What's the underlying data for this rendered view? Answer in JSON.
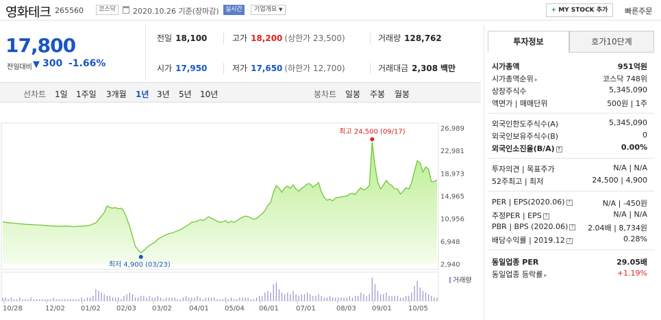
{
  "header": {
    "name": "영화테크",
    "code": "265560",
    "market": "코스닥",
    "date": "2020.10.26 기준(장마감)",
    "realtime": "실시간",
    "company_info": "기업개요",
    "mystock_label": "MY STOCK 추가",
    "quick_order": "빠른주문"
  },
  "price": {
    "current": "17,800",
    "change_label": "전일대비",
    "change_arrow": "▼",
    "change": "300",
    "change_pct": "-1.66%"
  },
  "stats": {
    "prev_label": "전일",
    "prev": "18,100",
    "high_label": "고가",
    "high": "18,200",
    "upper_limit": "(상한가 23,500)",
    "volume_label": "거래량",
    "volume": "128,762",
    "open_label": "시가",
    "open": "17,950",
    "low_label": "저가",
    "low": "17,650",
    "lower_limit": "(하한가 12,700)",
    "amount_label": "거래대금",
    "amount": "2,308",
    "amount_unit": "백만"
  },
  "period_bar": {
    "line_chart_label": "선차트",
    "line_options": [
      "1일",
      "1주일",
      "3개월",
      "1년",
      "3년",
      "5년",
      "10년"
    ],
    "selected": "1년",
    "candle_chart_label": "봉차트",
    "candle_options": [
      "일봉",
      "주봉",
      "월봉"
    ]
  },
  "chart_data": {
    "type": "area",
    "series": [
      {
        "values": [
          10400,
          10300,
          10200,
          10200,
          10150,
          10100,
          10050,
          10000,
          9950,
          9900,
          9900,
          9850,
          9850,
          9800,
          9800,
          9750,
          9700,
          9650,
          9650,
          9600,
          9600,
          9600,
          9650,
          9600,
          9600,
          9550,
          9550,
          9600,
          9600,
          9650,
          9700,
          9800,
          10000,
          10200,
          10800,
          11400,
          12000,
          13200,
          12900,
          12800,
          12900,
          12700,
          12800,
          12200,
          11000,
          9600,
          7800,
          6100,
          5400,
          4900,
          5300,
          5800,
          6200,
          6500,
          6800,
          7300,
          7600,
          7900,
          8100,
          8300,
          8400,
          8600,
          8800,
          9000,
          9300,
          9600,
          9900,
          10300,
          10400,
          10500,
          10800,
          10600,
          10900,
          11300,
          11000,
          10800,
          10500,
          10300,
          10400,
          10600,
          10200,
          10500,
          10300,
          10600,
          10900,
          11200,
          11400,
          11300,
          11100,
          10800,
          11000,
          11400,
          11800,
          12400,
          13300,
          13800,
          15600,
          16800,
          16300,
          15600,
          16400,
          16700,
          16300,
          16900,
          16200,
          15800,
          16300,
          16600,
          17100,
          17100,
          16500,
          16900,
          17300,
          15700,
          14700,
          14200,
          14400,
          14100,
          14600,
          14700,
          14800,
          14900,
          14900,
          15300,
          15400,
          15200,
          15900,
          16400,
          16000,
          16300,
          16800,
          24500,
          20300,
          17400,
          16200,
          16900,
          17700,
          17100,
          16800,
          16200,
          16200,
          15300,
          15800,
          16400,
          16200,
          17300,
          19300,
          21200,
          20800,
          19200,
          20100,
          19700,
          17500,
          17500,
          17800
        ]
      }
    ],
    "x_tick_labels": [
      "10/28",
      "12/02",
      "01/02",
      "02/03",
      "03/02",
      "04/01",
      "05/04",
      "06/01",
      "07/01",
      "08/03",
      "09/01",
      "10/05"
    ],
    "y_tick_labels": [
      "26,989",
      "22,981",
      "18,973",
      "14,965",
      "10,956",
      "6,948",
      "2,940"
    ],
    "ylim": [
      2940,
      26989
    ],
    "max_annotation": "최고 24,500 (09/17)",
    "min_annotation": "최저 4,900 (03/23)",
    "volume_legend": "거래량",
    "volume": [
      2,
      2,
      1,
      2,
      1,
      1,
      2,
      1,
      1,
      1,
      2,
      1,
      1,
      1,
      1,
      1,
      1,
      1,
      2,
      1,
      1,
      1,
      1,
      1,
      1,
      1,
      1,
      1,
      2,
      1,
      2,
      2,
      3,
      7,
      6,
      5,
      4,
      3,
      3,
      2,
      2,
      2,
      1,
      3,
      4,
      5,
      4,
      2,
      2,
      3,
      3,
      2,
      3,
      2,
      2,
      3,
      2,
      1,
      2,
      2,
      2,
      2,
      1,
      1,
      2,
      3,
      2,
      2,
      2,
      3,
      2,
      1,
      2,
      2,
      2,
      2,
      1,
      1,
      1,
      2,
      1,
      2,
      1,
      1,
      2,
      2,
      2,
      2,
      1,
      1,
      2,
      3,
      3,
      5,
      6,
      5,
      10,
      11,
      7,
      5,
      4,
      5,
      4,
      6,
      4,
      3,
      4,
      4,
      5,
      4,
      3,
      3,
      4,
      3,
      2,
      2,
      3,
      2,
      2,
      2,
      2,
      2,
      2,
      3,
      2,
      3,
      3,
      5,
      4,
      3,
      4,
      14,
      10,
      6,
      4,
      4,
      5,
      3,
      3,
      3,
      3,
      2,
      2,
      3,
      3,
      5,
      9,
      12,
      8,
      6,
      5,
      4,
      3,
      2,
      2
    ]
  },
  "right_panel": {
    "tab_invest": "투자정보",
    "tab_quote": "호가10단계",
    "rows": [
      {
        "label": "시가총액",
        "value": "951억원"
      },
      {
        "label": "시가총액순위",
        "value": "코스닥 748위"
      },
      {
        "label": "상장주식수",
        "value": "5,345,090"
      },
      {
        "label": "액면가 | 매매단위",
        "value": "500원 | 1주"
      },
      {
        "label": "외국인한도주식수(A)",
        "value": "5,345,090"
      },
      {
        "label": "외국인보유주식수(B)",
        "value": "0"
      },
      {
        "label": "외국인소진율(B/A)",
        "value": "0.00%"
      },
      {
        "label": "투자의견 | 목표주가",
        "value": "N/A | N/A"
      },
      {
        "label": "52주최고 | 최저",
        "value": "24,500 | 4,900"
      },
      {
        "label": "PER | EPS(2020.06)",
        "value": "N/A | -450원"
      },
      {
        "label": "추정PER | EPS",
        "value": "N/A | N/A"
      },
      {
        "label": "PBR | BPS (2020.06)",
        "value": "2.04배 | 8,734원"
      },
      {
        "label": "배당수익률 | 2019.12",
        "value": "0.28%"
      },
      {
        "label": "동일업종 PER",
        "value": "29.05배"
      },
      {
        "label": "동일업종 등락률",
        "value": "+1.19%"
      }
    ]
  }
}
